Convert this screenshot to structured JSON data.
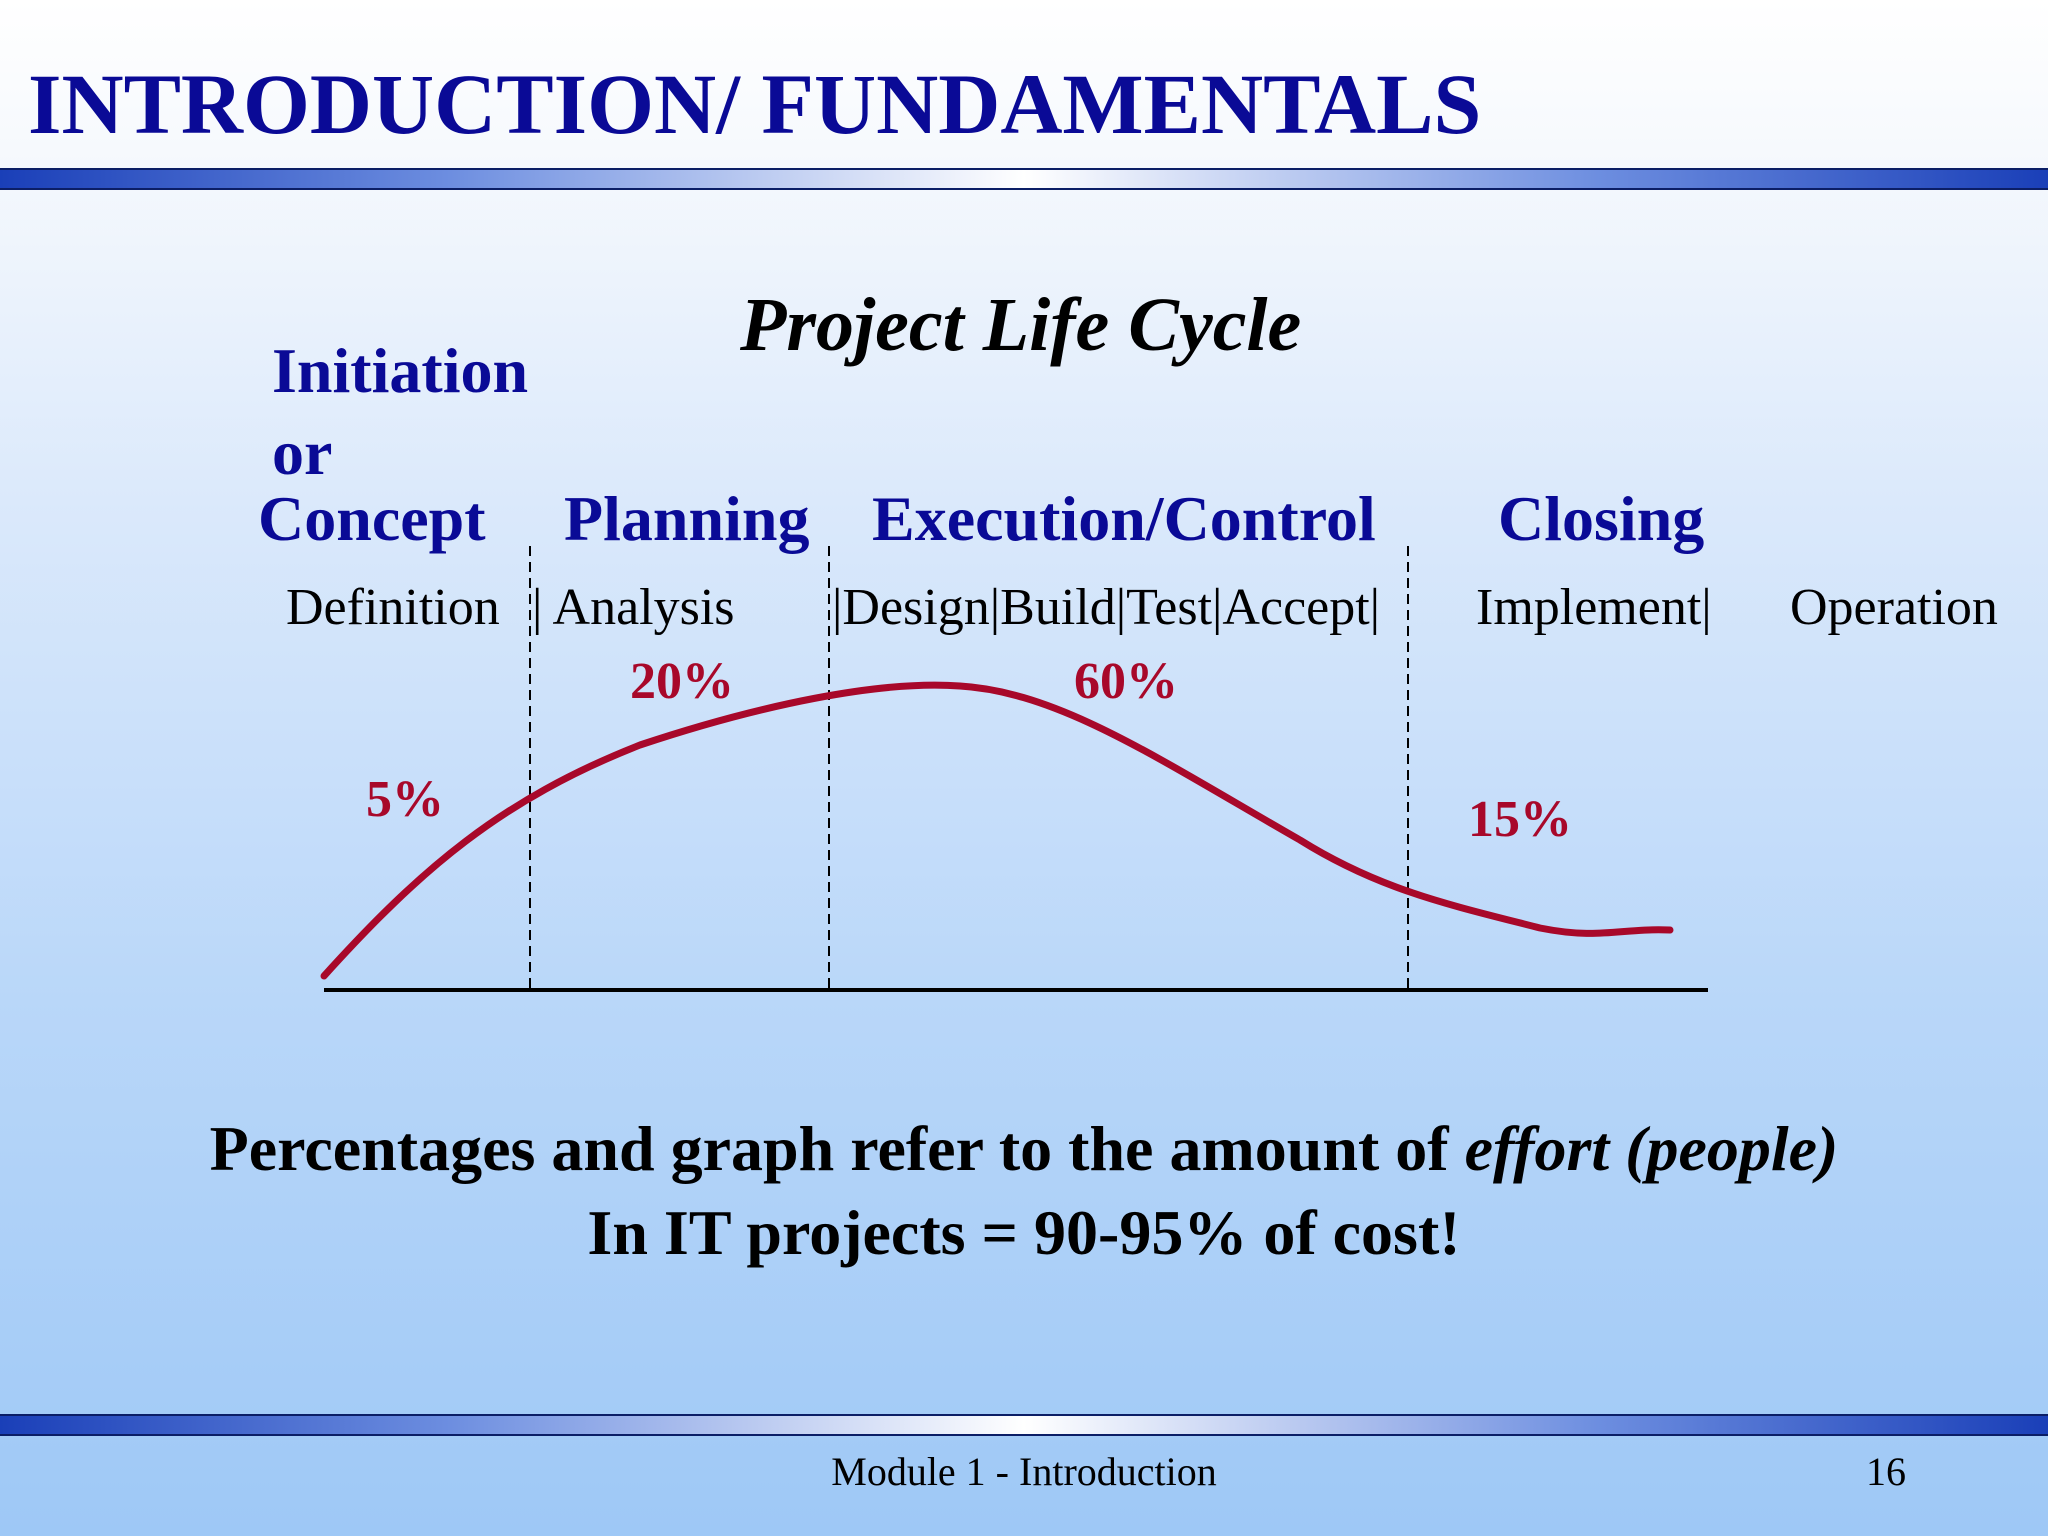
{
  "slide": {
    "title": "INTRODUCTION/ FUNDAMENTALS",
    "footer": "Module 1 - Introduction",
    "page_number": "16"
  },
  "diagram": {
    "title": "Project  Life Cycle",
    "phases": {
      "initiation": "Initiation",
      "or": "or",
      "concept": "Concept",
      "planning": "Planning",
      "execution": "Execution/Control",
      "closing": "Closing"
    },
    "subphases": {
      "definition": "Definition",
      "analysis": "| Analysis",
      "design_build": "|Design|Build|Test|Accept|",
      "implement": "Implement|",
      "operation": "Operation"
    },
    "percentages": {
      "concept": "5%",
      "planning": "20%",
      "execution": "60%",
      "closing": "15%"
    },
    "colors": {
      "curve": "#a8082a",
      "phase_text": "#0a0a96"
    }
  },
  "note": {
    "line1_prefix": "Percentages and graph refer to the amount of ",
    "line1_italic": "effort (people)",
    "line2": "In IT projects = 90-95% of cost!"
  }
}
